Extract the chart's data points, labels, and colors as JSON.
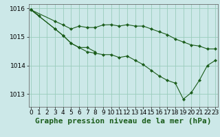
{
  "title": "Graphe pression niveau de la mer (hPa)",
  "background_color": "#cce8e8",
  "grid_color": "#99ccbb",
  "line_color": "#1a5c1a",
  "marker_color": "#1a5c1a",
  "xlim": [
    -0.3,
    23.3
  ],
  "ylim": [
    1012.55,
    1016.15
  ],
  "yticks": [
    1013,
    1014,
    1015,
    1016
  ],
  "xticks": [
    0,
    1,
    2,
    3,
    4,
    5,
    6,
    7,
    8,
    9,
    10,
    11,
    12,
    13,
    14,
    15,
    16,
    17,
    18,
    19,
    20,
    21,
    22,
    23
  ],
  "series": [
    {
      "x": [
        0,
        1
      ],
      "y": [
        1015.95,
        1015.75
      ]
    },
    {
      "x": [
        0,
        3,
        4,
        5,
        6,
        7,
        8,
        9,
        10,
        11,
        12,
        13,
        14,
        15,
        16,
        17,
        18,
        19,
        20,
        21,
        22,
        23
      ],
      "y": [
        1015.95,
        1015.55,
        1015.42,
        1015.28,
        1015.38,
        1015.33,
        1015.33,
        1015.42,
        1015.43,
        1015.38,
        1015.43,
        1015.38,
        1015.38,
        1015.28,
        1015.18,
        1015.08,
        1014.93,
        1014.82,
        1014.72,
        1014.68,
        1014.58,
        1014.58
      ]
    },
    {
      "x": [
        0,
        3,
        4,
        5,
        6,
        7,
        8
      ],
      "y": [
        1015.95,
        1015.28,
        1015.05,
        1014.78,
        1014.63,
        1014.63,
        1014.48
      ]
    },
    {
      "x": [
        0,
        3,
        4,
        5,
        6,
        7,
        8,
        9,
        10,
        11,
        12,
        13,
        14,
        15,
        16,
        17,
        18,
        19,
        20,
        21,
        22,
        23
      ],
      "y": [
        1015.95,
        1015.28,
        1015.05,
        1014.78,
        1014.63,
        1014.48,
        1014.43,
        1014.38,
        1014.38,
        1014.28,
        1014.33,
        1014.18,
        1014.03,
        1013.83,
        1013.63,
        1013.48,
        1013.38,
        1012.82,
        1013.05,
        1013.48,
        1014.0,
        1014.18
      ]
    }
  ],
  "tick_fontsize": 6.5,
  "title_fontsize": 8,
  "figwidth": 3.2,
  "figheight": 2.0,
  "dpi": 100
}
